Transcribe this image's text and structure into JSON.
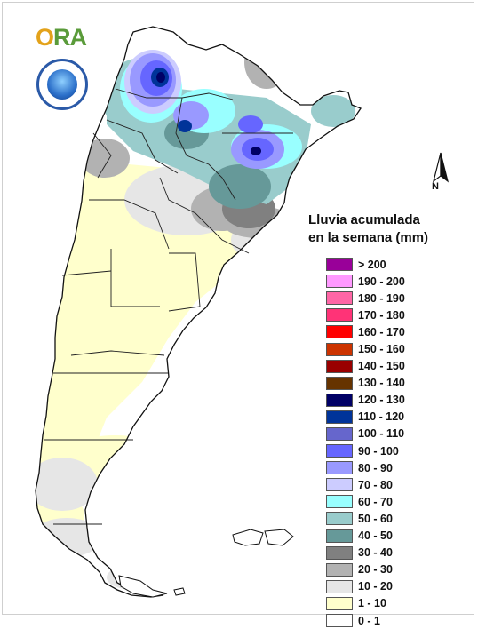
{
  "logo": {
    "text_a": "O",
    "text_b": "RA"
  },
  "north_label": "N",
  "legend": {
    "title_line1": "Lluvia acumulada",
    "title_line2": "en la semana (mm)",
    "items": [
      {
        "label": "> 200",
        "color": "#990099"
      },
      {
        "label": "190 - 200",
        "color": "#ff99ff"
      },
      {
        "label": "180 - 190",
        "color": "#ff66a6"
      },
      {
        "label": "170 - 180",
        "color": "#ff3377"
      },
      {
        "label": "160 - 170",
        "color": "#ff0000"
      },
      {
        "label": "150 - 160",
        "color": "#cc3300"
      },
      {
        "label": "140 - 150",
        "color": "#990000"
      },
      {
        "label": "130 - 140",
        "color": "#663300"
      },
      {
        "label": "120 - 130",
        "color": "#000066"
      },
      {
        "label": "110 - 120",
        "color": "#003399"
      },
      {
        "label": "100 - 110",
        "color": "#6666cc"
      },
      {
        "label": "90 - 100",
        "color": "#6666ff"
      },
      {
        "label": "80 - 90",
        "color": "#9999ff"
      },
      {
        "label": "70 - 80",
        "color": "#ccccff"
      },
      {
        "label": "60 - 70",
        "color": "#99ffff"
      },
      {
        "label": "50 - 60",
        "color": "#99cccc"
      },
      {
        "label": "40 - 50",
        "color": "#669999"
      },
      {
        "label": "30 - 40",
        "color": "#808080"
      },
      {
        "label": "20 - 30",
        "color": "#b2b2b2"
      },
      {
        "label": "10 - 20",
        "color": "#e6e6e6"
      },
      {
        "label": "1 - 10",
        "color": "#ffffcc"
      },
      {
        "label": "0 - 1",
        "color": "#ffffff"
      }
    ]
  }
}
